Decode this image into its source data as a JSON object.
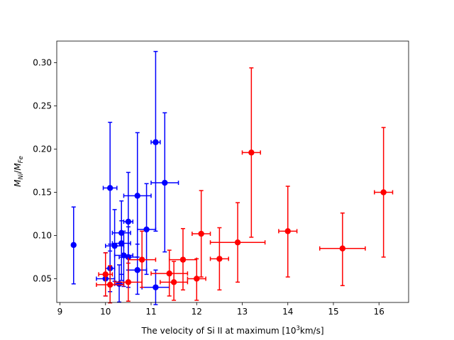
{
  "chart_data": {
    "type": "scatter",
    "xlabel": "The velocity of Si II at maximum [10³km/s]",
    "xlabel_parts": {
      "pre": "The velocity of Si II at maximum [10",
      "sup": "3",
      "post": "km/s]"
    },
    "ylabel": "M_Ni/M_Fe",
    "ylabel_parts": {
      "M1": "M",
      "sub1": "Ni",
      "slash": "/",
      "M2": "M",
      "sub2": "Fe"
    },
    "xlim": [
      8.93,
      16.65
    ],
    "ylim": [
      0.0225,
      0.325
    ],
    "x_ticks": [
      9,
      10,
      11,
      12,
      13,
      14,
      15,
      16
    ],
    "y_ticks": [
      0.05,
      0.1,
      0.15,
      0.2,
      0.25,
      0.3
    ],
    "x_tick_labels": [
      "9",
      "10",
      "11",
      "12",
      "13",
      "14",
      "15",
      "16"
    ],
    "y_tick_labels": [
      "0.05",
      "0.10",
      "0.15",
      "0.20",
      "0.25",
      "0.30"
    ],
    "grid": false,
    "series": [
      {
        "color": "#0000ff",
        "points": [
          {
            "x": 9.3,
            "y": 0.089,
            "ylo": 0.044,
            "yhi": 0.133,
            "xlo": 9.3,
            "xhi": 9.3
          },
          {
            "x": 10.0,
            "y": 0.05,
            "ylo": 0.03,
            "yhi": 0.08,
            "xlo": 9.8,
            "xhi": 10.2
          },
          {
            "x": 10.1,
            "y": 0.155,
            "ylo": 0.082,
            "yhi": 0.231,
            "xlo": 9.95,
            "xhi": 10.25
          },
          {
            "x": 10.1,
            "y": 0.062,
            "ylo": 0.035,
            "yhi": 0.09,
            "xlo": 10.0,
            "xhi": 10.2
          },
          {
            "x": 10.2,
            "y": 0.088,
            "ylo": 0.047,
            "yhi": 0.13,
            "xlo": 10.0,
            "xhi": 10.4
          },
          {
            "x": 10.3,
            "y": 0.044,
            "ylo": 0.023,
            "yhi": 0.066,
            "xlo": 10.2,
            "xhi": 10.4
          },
          {
            "x": 10.35,
            "y": 0.103,
            "ylo": 0.055,
            "yhi": 0.14,
            "xlo": 10.15,
            "xhi": 10.55
          },
          {
            "x": 10.35,
            "y": 0.091,
            "ylo": 0.048,
            "yhi": 0.117,
            "xlo": 10.15,
            "xhi": 10.55
          },
          {
            "x": 10.4,
            "y": 0.077,
            "ylo": 0.041,
            "yhi": 0.105,
            "xlo": 10.2,
            "xhi": 10.6
          },
          {
            "x": 10.5,
            "y": 0.116,
            "ylo": 0.06,
            "yhi": 0.173,
            "xlo": 10.4,
            "xhi": 10.6
          },
          {
            "x": 10.5,
            "y": 0.075,
            "ylo": 0.04,
            "yhi": 0.11,
            "xlo": 10.3,
            "xhi": 10.7
          },
          {
            "x": 10.7,
            "y": 0.146,
            "ylo": 0.075,
            "yhi": 0.219,
            "xlo": 10.4,
            "xhi": 11.0
          },
          {
            "x": 10.7,
            "y": 0.06,
            "ylo": 0.032,
            "yhi": 0.09,
            "xlo": 10.5,
            "xhi": 10.9
          },
          {
            "x": 10.9,
            "y": 0.107,
            "ylo": 0.055,
            "yhi": 0.16,
            "xlo": 10.7,
            "xhi": 11.1
          },
          {
            "x": 11.1,
            "y": 0.208,
            "ylo": 0.105,
            "yhi": 0.313,
            "xlo": 11.0,
            "xhi": 11.2
          },
          {
            "x": 11.1,
            "y": 0.04,
            "ylo": 0.02,
            "yhi": 0.06,
            "xlo": 10.8,
            "xhi": 11.4
          },
          {
            "x": 11.3,
            "y": 0.161,
            "ylo": 0.081,
            "yhi": 0.242,
            "xlo": 11.0,
            "xhi": 11.6
          }
        ]
      },
      {
        "color": "#ff0000",
        "points": [
          {
            "x": 10.0,
            "y": 0.055,
            "ylo": 0.03,
            "yhi": 0.08,
            "xlo": 9.85,
            "xhi": 10.15
          },
          {
            "x": 10.1,
            "y": 0.043,
            "ylo": 0.022,
            "yhi": 0.065,
            "xlo": 9.8,
            "xhi": 10.4
          },
          {
            "x": 10.5,
            "y": 0.046,
            "ylo": 0.024,
            "yhi": 0.068,
            "xlo": 10.2,
            "xhi": 10.8
          },
          {
            "x": 10.8,
            "y": 0.072,
            "ylo": 0.04,
            "yhi": 0.105,
            "xlo": 10.5,
            "xhi": 11.1
          },
          {
            "x": 11.4,
            "y": 0.056,
            "ylo": 0.03,
            "yhi": 0.083,
            "xlo": 11.0,
            "xhi": 11.8
          },
          {
            "x": 11.5,
            "y": 0.046,
            "ylo": 0.025,
            "yhi": 0.07,
            "xlo": 11.2,
            "xhi": 11.8
          },
          {
            "x": 11.7,
            "y": 0.072,
            "ylo": 0.037,
            "yhi": 0.108,
            "xlo": 11.4,
            "xhi": 12.0
          },
          {
            "x": 12.0,
            "y": 0.05,
            "ylo": 0.025,
            "yhi": 0.073,
            "xlo": 11.8,
            "xhi": 12.2
          },
          {
            "x": 12.1,
            "y": 0.102,
            "ylo": 0.052,
            "yhi": 0.152,
            "xlo": 11.9,
            "xhi": 12.3
          },
          {
            "x": 12.5,
            "y": 0.073,
            "ylo": 0.037,
            "yhi": 0.109,
            "xlo": 12.3,
            "xhi": 12.7
          },
          {
            "x": 12.9,
            "y": 0.092,
            "ylo": 0.046,
            "yhi": 0.138,
            "xlo": 12.3,
            "xhi": 13.5
          },
          {
            "x": 13.2,
            "y": 0.196,
            "ylo": 0.098,
            "yhi": 0.294,
            "xlo": 13.0,
            "xhi": 13.4
          },
          {
            "x": 14.0,
            "y": 0.105,
            "ylo": 0.052,
            "yhi": 0.157,
            "xlo": 13.8,
            "xhi": 14.2
          },
          {
            "x": 15.2,
            "y": 0.085,
            "ylo": 0.042,
            "yhi": 0.126,
            "xlo": 14.7,
            "xhi": 15.7
          },
          {
            "x": 16.1,
            "y": 0.15,
            "ylo": 0.075,
            "yhi": 0.225,
            "xlo": 15.9,
            "xhi": 16.3
          }
        ]
      }
    ]
  }
}
